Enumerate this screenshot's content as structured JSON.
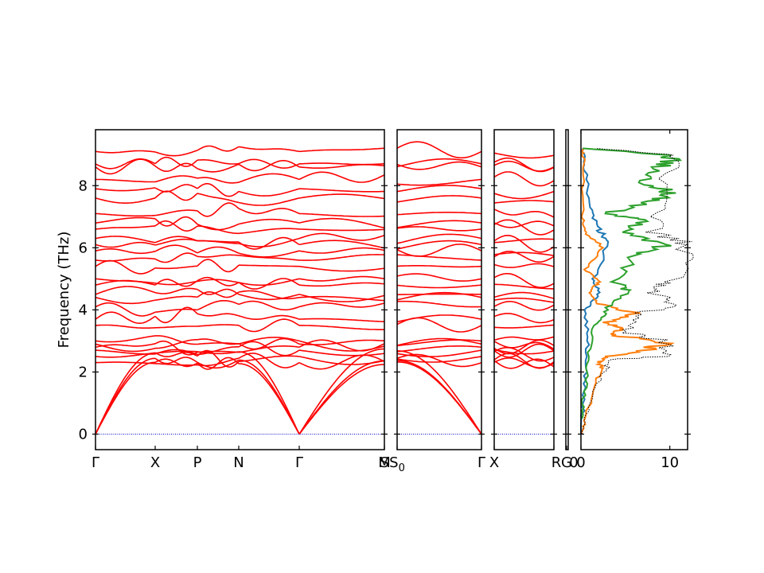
{
  "chart_data": {
    "type": "line",
    "ylabel": "Frequency (THz)",
    "ylim": [
      -0.5,
      9.8
    ],
    "yticks": [
      0,
      2,
      4,
      6,
      8
    ],
    "line_color": "#ff0000",
    "zero_line_color": "#0000cc",
    "panels": [
      {
        "x_labels": [
          "Γ",
          "X",
          "P",
          "N",
          "Γ",
          "M"
        ],
        "segments": [
          {
            "from": "Γ",
            "to": "X"
          },
          {
            "from": "X",
            "to": "P"
          },
          {
            "from": "P",
            "to": "N"
          },
          {
            "from": "N",
            "to": "Γ"
          },
          {
            "from": "Γ",
            "to": "M"
          }
        ]
      },
      {
        "x_labels": [
          "S",
          "S0",
          "Γ"
        ],
        "segments": [
          {
            "from": "S0",
            "to": "Γ"
          }
        ]
      },
      {
        "x_labels": [
          "X",
          "R"
        ],
        "segments": [
          {
            "from": "X",
            "to": "R"
          }
        ]
      },
      {
        "x_labels": [
          "G"
        ],
        "segments": []
      }
    ],
    "branches_at_gamma": [
      0.0,
      0.0,
      0.0,
      2.3,
      2.5,
      2.7,
      2.8,
      2.9,
      3.0,
      3.5,
      3.7,
      4.1,
      4.4,
      4.5,
      4.8,
      5.0,
      5.4,
      5.6,
      5.9,
      6.1,
      6.3,
      6.6,
      6.8,
      7.1,
      7.6,
      7.9,
      8.2,
      8.6,
      8.7,
      9.1
    ],
    "dos": {
      "xlim": [
        0,
        12
      ],
      "xticks": [
        0,
        10
      ],
      "x_label_left": "0",
      "series": [
        {
          "color": "#1f77b4",
          "points": [
            [
              0.0,
              0.0
            ],
            [
              0.3,
              1.0
            ],
            [
              0.5,
              2.0
            ],
            [
              0.8,
              3.0
            ],
            [
              0.5,
              4.0
            ],
            [
              2.0,
              4.5
            ],
            [
              1.5,
              5.0
            ],
            [
              3.0,
              6.2
            ],
            [
              2.0,
              6.6
            ],
            [
              1.0,
              7.3
            ],
            [
              0.5,
              8.5
            ],
            [
              0.2,
              9.2
            ]
          ]
        },
        {
          "color": "#ff7f0e",
          "points": [
            [
              0.0,
              0.0
            ],
            [
              0.5,
              0.5
            ],
            [
              1.5,
              1.5
            ],
            [
              2.5,
              2.1
            ],
            [
              2.0,
              2.3
            ],
            [
              3.0,
              2.5
            ],
            [
              7.0,
              2.7
            ],
            [
              9.5,
              2.95
            ],
            [
              3.5,
              3.2
            ],
            [
              4.5,
              3.4
            ],
            [
              3.0,
              3.6
            ],
            [
              6.0,
              3.9
            ],
            [
              2.0,
              4.2
            ],
            [
              1.0,
              4.6
            ],
            [
              2.0,
              4.9
            ],
            [
              0.5,
              5.3
            ],
            [
              2.5,
              6.0
            ],
            [
              0.5,
              6.5
            ],
            [
              0.1,
              7.0
            ],
            [
              0.3,
              8.8
            ],
            [
              0.1,
              9.2
            ]
          ]
        },
        {
          "color": "#2ca02c",
          "points": [
            [
              0.0,
              0.5
            ],
            [
              0.5,
              1.5
            ],
            [
              0.8,
              2.5
            ],
            [
              1.5,
              3.5
            ],
            [
              3.0,
              4.0
            ],
            [
              5.0,
              4.6
            ],
            [
              4.0,
              4.9
            ],
            [
              6.0,
              5.8
            ],
            [
              9.5,
              6.1
            ],
            [
              5.0,
              6.5
            ],
            [
              7.0,
              6.9
            ],
            [
              3.0,
              7.1
            ],
            [
              8.0,
              7.5
            ],
            [
              10.0,
              7.8
            ],
            [
              7.0,
              8.1
            ],
            [
              9.0,
              8.6
            ],
            [
              10.5,
              8.95
            ],
            [
              1.0,
              9.2
            ]
          ]
        },
        {
          "color": "#000000",
          "dotted": true,
          "points": [
            [
              0.0,
              0.0
            ],
            [
              1.0,
              1.0
            ],
            [
              2.5,
              2.0
            ],
            [
              3.5,
              2.4
            ],
            [
              9.0,
              2.5
            ],
            [
              10.0,
              2.95
            ],
            [
              5.0,
              3.3
            ],
            [
              6.0,
              3.8
            ],
            [
              11.0,
              4.2
            ],
            [
              8.5,
              4.6
            ],
            [
              10.0,
              4.9
            ],
            [
              12.0,
              6.1
            ],
            [
              8.0,
              6.5
            ],
            [
              9.0,
              7.5
            ],
            [
              11.0,
              8.95
            ],
            [
              2.0,
              9.2
            ]
          ]
        }
      ]
    }
  }
}
